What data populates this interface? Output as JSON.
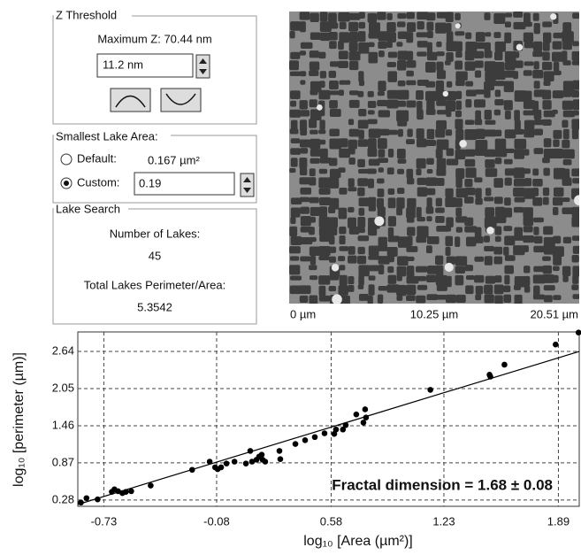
{
  "panel": {
    "z_threshold": {
      "title": "Z Threshold",
      "maximum_z": "Maximum Z: 70.44 nm",
      "input": "11.2 nm"
    },
    "lake_area": {
      "title": "Smallest Lake Area:",
      "default_label": "Default:",
      "default_value": "0.167 µm²",
      "custom_label": "Custom:",
      "custom_value": "0.19"
    },
    "lake_search": {
      "title": "Lake Search",
      "count_label": "Number of Lakes:",
      "count": "45",
      "ratio_label": "Total Lakes Perimeter/Area:",
      "ratio": "5.3542"
    },
    "image_axis": [
      "0 µm",
      "10.25 µm",
      "20.51 µm"
    ]
  },
  "chart_data": {
    "type": "scatter",
    "xlabel": "log₁₀ [Area (µm²)]",
    "ylabel": "log₁₀ [perimeter (µm)]",
    "annotation": "Fractal dimension = 1.68 ± 0.08",
    "xlim": [
      -0.88,
      2.01
    ],
    "ylim": [
      0.18,
      2.95
    ],
    "xticks": [
      -0.73,
      -0.08,
      0.58,
      1.23,
      1.89
    ],
    "yticks": [
      0.28,
      0.87,
      1.46,
      2.05,
      2.64
    ],
    "grid": true,
    "series": [
      {
        "type": "scatter",
        "color": "#000000",
        "x": [
          -0.862,
          -0.83,
          -0.766,
          -0.684,
          -0.669,
          -0.648,
          -0.623,
          -0.603,
          -0.572,
          -0.46,
          -0.221,
          -0.12,
          -0.089,
          -0.074,
          -0.054,
          -0.023,
          0.023,
          0.089,
          0.114,
          0.124,
          0.15,
          0.165,
          0.18,
          0.185,
          0.2,
          0.282,
          0.287,
          0.374,
          0.43,
          0.486,
          0.542,
          0.598,
          0.608,
          0.648,
          0.664,
          0.725,
          0.766,
          0.776,
          0.781,
          1.152,
          1.493,
          1.498,
          1.579,
          1.874,
          2.006
        ],
        "values": [
          0.24,
          0.31,
          0.29,
          0.41,
          0.45,
          0.42,
          0.39,
          0.41,
          0.42,
          0.51,
          0.76,
          0.89,
          0.8,
          0.77,
          0.8,
          0.86,
          0.89,
          0.86,
          1.06,
          0.89,
          0.92,
          0.97,
          1.0,
          0.92,
          0.89,
          1.06,
          0.93,
          1.17,
          1.23,
          1.28,
          1.34,
          1.33,
          1.4,
          1.4,
          1.47,
          1.64,
          1.51,
          1.72,
          1.59,
          2.03,
          2.27,
          2.24,
          2.43,
          2.75,
          2.94
        ]
      },
      {
        "type": "line",
        "color": "#000000",
        "x": [
          -0.88,
          2.01
        ],
        "values": [
          0.21,
          2.64
        ]
      }
    ]
  }
}
